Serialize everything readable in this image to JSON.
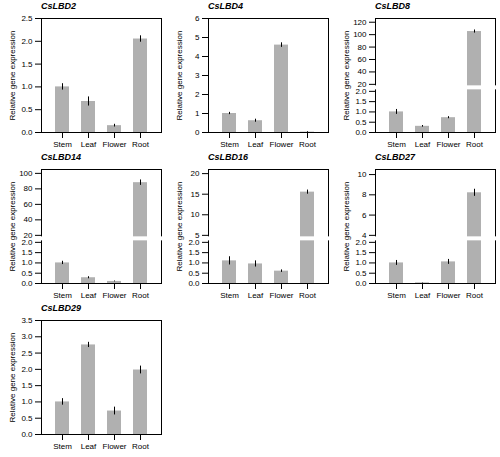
{
  "chart_data": [
    {
      "type": "bar",
      "title": "CsLBD2",
      "ylabel": "Relative gene expression",
      "color": "#b0b0b0",
      "categories": [
        "Stem",
        "Leaf",
        "Flower",
        "Root"
      ],
      "values": [
        1.0,
        0.68,
        0.15,
        2.05
      ],
      "errors": [
        0.07,
        0.1,
        0.03,
        0.07
      ],
      "ylim": [
        0,
        2.5
      ],
      "yticks": [
        {
          "value": 0,
          "label": "0.0"
        },
        0.5,
        {
          "value": 1,
          "label": "1.0"
        },
        1.5,
        {
          "value": 2,
          "label": "2.0"
        },
        2.5
      ]
    },
    {
      "type": "bar",
      "title": "CsLBD4",
      "ylabel": "Relative gene expression",
      "color": "#b0b0b0",
      "categories": [
        "Stem",
        "Leaf",
        "Flower",
        "Root"
      ],
      "values": [
        1.0,
        0.62,
        4.6,
        0.02
      ],
      "errors": [
        0.06,
        0.08,
        0.12,
        0.02
      ],
      "ylim": [
        0,
        6
      ],
      "yticks": [
        0,
        1,
        2,
        3,
        4,
        5,
        6
      ]
    },
    {
      "type": "bar",
      "title": "CsLBD8",
      "ylabel": "Relative gene expression",
      "color": "#b0b0b0",
      "categories": [
        "Stem",
        "Leaf",
        "Flower",
        "Root"
      ],
      "values": [
        1.0,
        0.3,
        0.72,
        105.0
      ],
      "errors": [
        0.12,
        0.04,
        0.05,
        2.5
      ],
      "ylim": [
        0,
        126
      ],
      "yticks": [
        {
          "value": 0,
          "label": "0.0"
        },
        0.5,
        {
          "value": 1,
          "label": "1.0"
        },
        1.5,
        {
          "value": 2,
          "label": "2.0"
        },
        20,
        40,
        60,
        80,
        100,
        120
      ]
    },
    {
      "type": "bar",
      "title": "CsLBD14",
      "ylabel": "Relative gene expression",
      "color": "#b0b0b0",
      "categories": [
        "Stem",
        "Leaf",
        "Flower",
        "Root"
      ],
      "values": [
        1.0,
        0.28,
        0.1,
        88.0
      ],
      "errors": [
        0.08,
        0.05,
        0.02,
        3.5
      ],
      "ylim": [
        0,
        105
      ],
      "yticks": [
        {
          "value": 0,
          "label": "0.0"
        },
        0.5,
        {
          "value": 1,
          "label": "1.0"
        },
        1.5,
        {
          "value": 2,
          "label": "2.0"
        },
        20,
        40,
        60,
        80,
        100
      ]
    },
    {
      "type": "bar",
      "title": "CsLBD16",
      "ylabel": "Relative gene expression",
      "color": "#b0b0b0",
      "categories": [
        "Stem",
        "Leaf",
        "Flower",
        "Root"
      ],
      "values": [
        1.1,
        0.95,
        0.6,
        15.5
      ],
      "errors": [
        0.2,
        0.15,
        0.06,
        0.5
      ],
      "ylim": [
        0,
        21
      ],
      "yticks": [
        {
          "value": 0,
          "label": "0.0"
        },
        0.5,
        {
          "value": 1,
          "label": "1.0"
        },
        1.5,
        {
          "value": 2,
          "label": "2.0"
        },
        5,
        10,
        15,
        20
      ]
    },
    {
      "type": "bar",
      "title": "CsLBD27",
      "ylabel": "Relative gene expression",
      "color": "#b0b0b0",
      "categories": [
        "Stem",
        "Leaf",
        "Flower",
        "Root"
      ],
      "values": [
        1.0,
        0.03,
        1.05,
        8.2
      ],
      "errors": [
        0.12,
        0.01,
        0.12,
        0.35
      ],
      "ylim": [
        0,
        10.5
      ],
      "yticks": [
        {
          "value": 0,
          "label": "0.0"
        },
        0.5,
        {
          "value": 1,
          "label": "1.0"
        },
        1.5,
        {
          "value": 2,
          "label": "2.0"
        },
        4,
        6,
        8,
        10
      ]
    },
    {
      "type": "bar",
      "title": "CsLBD29",
      "ylabel": "Relative gene expression",
      "color": "#b0b0b0",
      "categories": [
        "Stem",
        "Leaf",
        "Flower",
        "Root"
      ],
      "values": [
        1.0,
        2.75,
        0.72,
        1.98
      ],
      "errors": [
        0.1,
        0.08,
        0.12,
        0.12
      ],
      "ylim": [
        0,
        3.5
      ],
      "yticks": [
        {
          "value": 0,
          "label": "0.0"
        },
        0.5,
        {
          "value": 1,
          "label": "1.0"
        },
        1.5,
        {
          "value": 2,
          "label": "2.0"
        },
        2.5,
        {
          "value": 3,
          "label": "3.0"
        },
        3.5
      ]
    }
  ]
}
